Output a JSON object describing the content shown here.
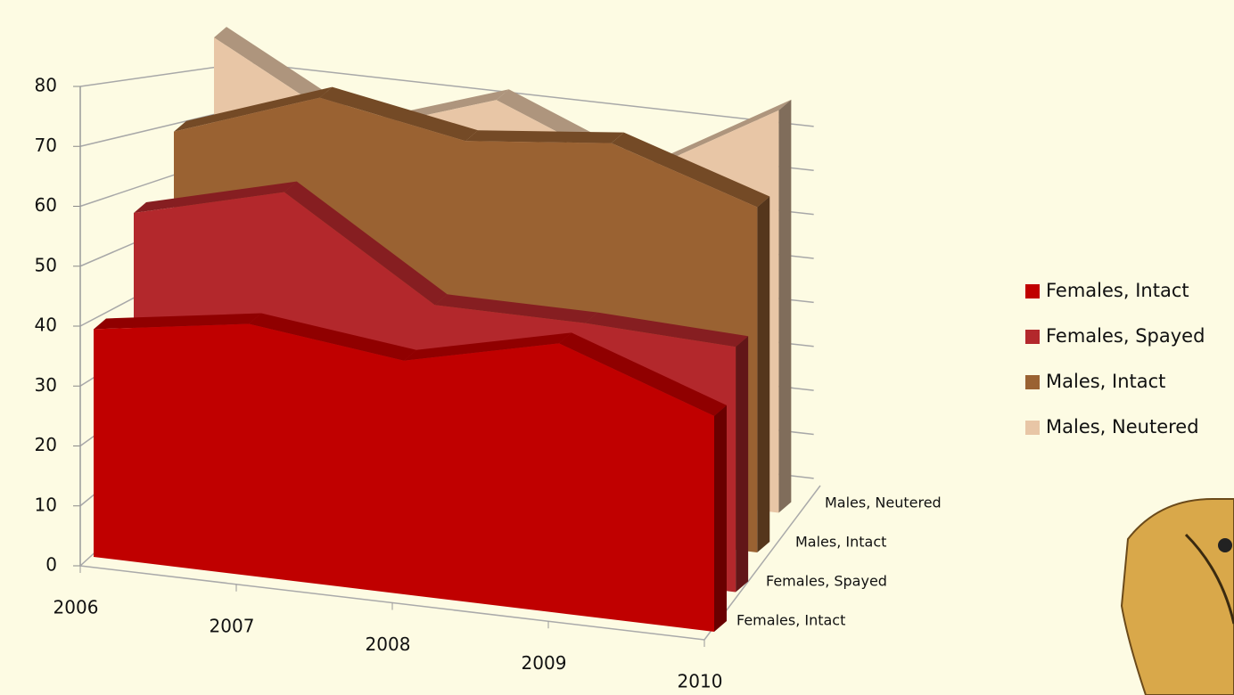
{
  "chart_data": {
    "type": "area",
    "x": [
      2006,
      2007,
      2008,
      2009,
      2010
    ],
    "series": [
      {
        "name": "Females, Intact",
        "color": "#c00000",
        "values": [
          38,
          42,
          39,
          45,
          36
        ]
      },
      {
        "name": "Females, Spayed",
        "color": "#b3282c",
        "values": [
          55,
          62,
          45,
          45,
          44
        ]
      },
      {
        "name": "Males, Intact",
        "color": "#9a6232",
        "values": [
          68,
          78,
          73,
          76,
          67
        ]
      },
      {
        "name": "Males, Neutered",
        "color": "#e8c6a6",
        "values": [
          86,
          70,
          80,
          68,
          85
        ]
      }
    ],
    "ylim": [
      0,
      80
    ],
    "yticks": [
      0,
      10,
      20,
      30,
      40,
      50,
      60,
      70,
      80
    ],
    "grid": true,
    "legend": "right"
  }
}
